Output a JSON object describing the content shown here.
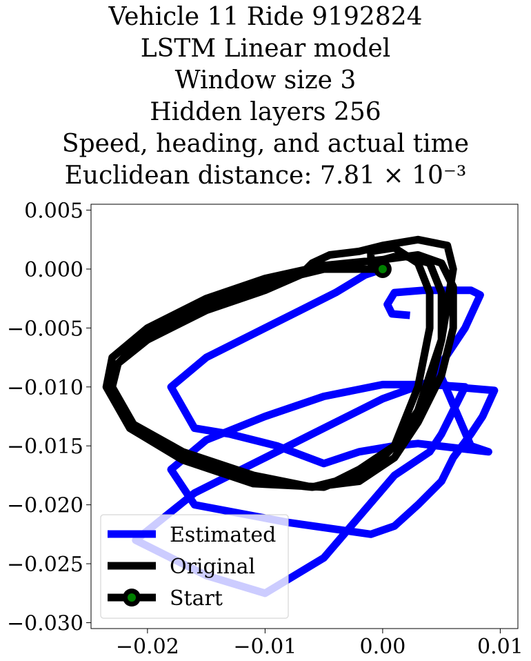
{
  "chart_data": {
    "type": "line",
    "title_lines": [
      "Vehicle 11 Ride 9192824",
      "LSTM Linear model",
      "Window size 3",
      "Hidden layers 256",
      "Speed, heading, and actual time",
      "Euclidean distance: 7.81 × 10⁻³"
    ],
    "xlabel": "",
    "ylabel": "",
    "xlim": [
      -0.0248,
      0.0115
    ],
    "ylim": [
      -0.0305,
      0.0055
    ],
    "x_ticks": [
      -0.02,
      -0.01,
      0.0,
      0.01
    ],
    "x_tick_labels": [
      "−0.02",
      "−0.01",
      "0.00",
      "0.01"
    ],
    "y_ticks": [
      0.005,
      0.0,
      -0.005,
      -0.01,
      -0.015,
      -0.02,
      -0.025,
      -0.03
    ],
    "y_tick_labels": [
      "0.005",
      "0.000",
      "−0.005",
      "−0.010",
      "−0.015",
      "−0.020",
      "−0.025",
      "−0.030"
    ],
    "grid": false,
    "legend_position": "lower-left",
    "series": [
      {
        "name": "Estimated",
        "color": "#0000ff",
        "points": [
          [
            0.002,
            -0.0039
          ],
          [
            0.0008,
            -0.0038
          ],
          [
            0.0004,
            -0.003
          ],
          [
            0.001,
            -0.002
          ],
          [
            0.0035,
            -0.0018
          ],
          [
            0.0075,
            -0.0018
          ],
          [
            0.0083,
            -0.0022
          ],
          [
            0.007,
            -0.005
          ],
          [
            0.005,
            -0.008
          ],
          [
            0.004,
            -0.0095
          ],
          [
            0.006,
            -0.01
          ],
          [
            0.0095,
            -0.0103
          ],
          [
            0.0085,
            -0.0125
          ],
          [
            0.0075,
            -0.014
          ],
          [
            0.006,
            -0.016
          ],
          [
            0.005,
            -0.018
          ],
          [
            0.003,
            -0.02
          ],
          [
            0.001,
            -0.0218
          ],
          [
            -0.001,
            -0.0225
          ],
          [
            -0.008,
            -0.0215
          ],
          [
            -0.016,
            -0.02
          ],
          [
            -0.018,
            -0.017
          ],
          [
            -0.015,
            -0.0145
          ],
          [
            -0.01,
            -0.0125
          ],
          [
            -0.005,
            -0.0108
          ],
          [
            0.0,
            -0.0098
          ],
          [
            0.004,
            -0.0098
          ],
          [
            0.007,
            -0.01
          ],
          [
            0.006,
            -0.012
          ],
          [
            0.005,
            -0.014
          ],
          [
            0.004,
            -0.0155
          ],
          [
            0.001,
            -0.0175
          ],
          [
            -0.002,
            -0.021
          ],
          [
            -0.005,
            -0.0245
          ],
          [
            -0.01,
            -0.0275
          ],
          [
            -0.015,
            -0.026
          ],
          [
            -0.021,
            -0.023
          ],
          [
            -0.016,
            -0.019
          ],
          [
            -0.01,
            -0.016
          ],
          [
            -0.006,
            -0.014
          ],
          [
            -0.003,
            -0.0125
          ],
          [
            0.0,
            -0.011
          ],
          [
            0.005,
            -0.0092
          ],
          [
            0.0075,
            -0.015
          ],
          [
            0.009,
            -0.0155
          ],
          [
            0.003,
            -0.0148
          ],
          [
            0.001,
            -0.015
          ],
          [
            -0.002,
            -0.0155
          ],
          [
            -0.005,
            -0.0165
          ],
          [
            -0.009,
            -0.015
          ],
          [
            -0.013,
            -0.014
          ],
          [
            -0.016,
            -0.0135
          ],
          [
            -0.018,
            -0.01
          ],
          [
            -0.015,
            -0.0075
          ],
          [
            -0.011,
            -0.0055
          ],
          [
            -0.007,
            -0.0035
          ],
          [
            -0.004,
            -0.002
          ],
          [
            -0.0015,
            -0.0005
          ],
          [
            0.0,
            0.0
          ]
        ]
      },
      {
        "name": "Original",
        "color": "#000000",
        "points": [
          [
            0.0,
            0.0
          ],
          [
            -0.005,
            0.0
          ],
          [
            -0.01,
            -0.0012
          ],
          [
            -0.015,
            -0.003
          ],
          [
            -0.02,
            -0.0055
          ],
          [
            -0.023,
            -0.0085
          ],
          [
            -0.0235,
            -0.01
          ],
          [
            -0.0215,
            -0.013
          ],
          [
            -0.017,
            -0.0155
          ],
          [
            -0.011,
            -0.0175
          ],
          [
            -0.006,
            -0.0185
          ],
          [
            -0.002,
            -0.0175
          ],
          [
            0.001,
            -0.015
          ],
          [
            0.003,
            -0.01
          ],
          [
            0.004,
            -0.005
          ],
          [
            0.004,
            -0.002
          ],
          [
            0.003,
            0.0005
          ],
          [
            0.001,
            0.0018
          ],
          [
            -0.001,
            0.0015
          ],
          [
            -0.001,
            0.0005
          ],
          [
            0.0015,
            0.0012
          ],
          [
            0.004,
            0.0005
          ],
          [
            0.005,
            -0.002
          ],
          [
            0.005,
            -0.006
          ],
          [
            0.004,
            -0.01
          ],
          [
            0.002,
            -0.014
          ],
          [
            -0.001,
            -0.017
          ],
          [
            -0.005,
            -0.0185
          ],
          [
            -0.011,
            -0.0182
          ],
          [
            -0.017,
            -0.0162
          ],
          [
            -0.0215,
            -0.0135
          ],
          [
            -0.0235,
            -0.01
          ],
          [
            -0.023,
            -0.0075
          ],
          [
            -0.02,
            -0.005
          ],
          [
            -0.015,
            -0.0025
          ],
          [
            -0.01,
            -0.0008
          ],
          [
            -0.005,
            0.0003
          ],
          [
            0.0,
            0.0008
          ],
          [
            0.003,
            0.0012
          ],
          [
            0.005,
            0.0005
          ],
          [
            0.006,
            -0.0015
          ],
          [
            0.006,
            -0.005
          ],
          [
            0.005,
            -0.009
          ],
          [
            0.003,
            -0.013
          ],
          [
            0.001,
            -0.016
          ],
          [
            -0.002,
            -0.018
          ],
          [
            -0.006,
            -0.0185
          ],
          [
            -0.011,
            -0.018
          ],
          [
            -0.017,
            -0.016
          ],
          [
            -0.021,
            -0.0135
          ],
          [
            -0.023,
            -0.01
          ],
          [
            -0.0225,
            -0.008
          ],
          [
            -0.02,
            -0.006
          ],
          [
            -0.015,
            -0.0035
          ],
          [
            -0.01,
            -0.0018
          ],
          [
            -0.007,
            -0.0005
          ],
          [
            -0.006,
            0.0005
          ],
          [
            -0.0045,
            0.0012
          ],
          [
            -0.002,
            0.0015
          ],
          [
            0.0,
            0.002
          ],
          [
            0.003,
            0.0025
          ],
          [
            0.0055,
            0.002
          ],
          [
            0.006,
            0.0
          ],
          [
            0.0055,
            -0.003
          ],
          [
            0.005,
            -0.006
          ],
          [
            0.004,
            -0.009
          ],
          [
            0.003,
            -0.012
          ],
          [
            0.001,
            -0.015
          ],
          [
            -0.002,
            -0.017
          ],
          [
            -0.004,
            -0.018
          ]
        ]
      }
    ],
    "start": {
      "name": "Start",
      "point": [
        0.0,
        0.0
      ],
      "marker_color": "#008000",
      "edge_color": "#000000"
    }
  }
}
